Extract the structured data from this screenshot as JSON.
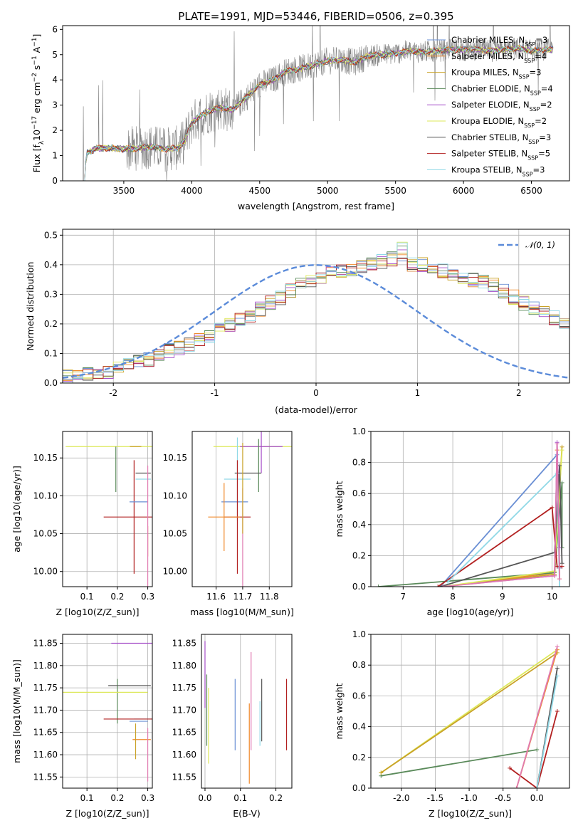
{
  "figure_title": "PLATE=1991, MJD=53446, FIBERID=0506, z=0.395",
  "colors": {
    "Chabrier MILES": "#6a8fd4",
    "Salpeter MILES": "#f08a2c",
    "Kroupa MILES": "#c9a227",
    "Chabrier ELODIE": "#5a8a5a",
    "Salpeter ELODIE": "#a64fc9",
    "Kroupa ELODIE": "#dde85a",
    "Chabrier STELIB": "#555555",
    "Salpeter STELIB": "#b22020",
    "Kroupa STELIB": "#8fd8e6",
    "Pink": "#e07ab0",
    "data": "#808080",
    "normal": "#5b8bd9"
  },
  "chart_data": [
    {
      "id": "spectrum",
      "type": "line",
      "xlabel": "wavelength [Angstrom, rest frame]",
      "ylabel": "Flux [f_λ 10^-17 erg cm^-2 s^-1 A^-1]",
      "xlim": [
        3050,
        6780
      ],
      "ylim": [
        0,
        6.15
      ],
      "xticks": [
        3500,
        4000,
        4500,
        5000,
        5500,
        6000,
        6500
      ],
      "yticks": [
        0,
        1,
        2,
        3,
        4,
        5,
        6
      ],
      "grid": false,
      "legend_position": "top-right",
      "legend": [
        {
          "name": "Chabrier MILES",
          "nssp": "3",
          "color": "#6a8fd4"
        },
        {
          "name": "Salpeter MILES",
          "nssp": "4",
          "color": "#f08a2c"
        },
        {
          "name": "Kroupa MILES",
          "nssp": "3",
          "color": "#c9a227"
        },
        {
          "name": "Chabrier ELODIE",
          "nssp": "4",
          "color": "#5a8a5a"
        },
        {
          "name": "Salpeter ELODIE",
          "nssp": "2",
          "color": "#a64fc9"
        },
        {
          "name": "Kroupa ELODIE",
          "nssp": "2",
          "color": "#dde85a"
        },
        {
          "name": "Chabrier STELIB",
          "nssp": "3",
          "color": "#555555"
        },
        {
          "name": "Salpeter STELIB",
          "nssp": "5",
          "color": "#b22020"
        },
        {
          "name": "Kroupa STELIB",
          "nssp": "3",
          "color": "#8fd8e6"
        }
      ],
      "continuum": [
        [
          3200,
          0
        ],
        [
          3230,
          1.1
        ],
        [
          3300,
          1.3
        ],
        [
          3400,
          1.3
        ],
        [
          3500,
          1.25
        ],
        [
          3600,
          1.3
        ],
        [
          3700,
          1.35
        ],
        [
          3800,
          1.25
        ],
        [
          3900,
          1.3
        ],
        [
          3950,
          1.6
        ],
        [
          4000,
          2.3
        ],
        [
          4100,
          2.7
        ],
        [
          4200,
          2.9
        ],
        [
          4300,
          2.8
        ],
        [
          4400,
          3.3
        ],
        [
          4500,
          3.8
        ],
        [
          4600,
          4.0
        ],
        [
          4700,
          4.35
        ],
        [
          4800,
          4.45
        ],
        [
          4900,
          4.6
        ],
        [
          5000,
          4.75
        ],
        [
          5100,
          4.8
        ],
        [
          5200,
          4.7
        ],
        [
          5300,
          4.95
        ],
        [
          5400,
          5.0
        ],
        [
          5500,
          5.05
        ],
        [
          5600,
          5.15
        ],
        [
          5700,
          5.1
        ],
        [
          5800,
          5.15
        ],
        [
          5900,
          5.2
        ],
        [
          6000,
          5.2
        ],
        [
          6100,
          5.2
        ],
        [
          6200,
          5.15
        ],
        [
          6300,
          5.2
        ],
        [
          6400,
          5.25
        ],
        [
          6500,
          5.15
        ],
        [
          6600,
          5.2
        ],
        [
          6650,
          5.2
        ]
      ]
    },
    {
      "id": "residuals",
      "type": "histogram",
      "xlabel": "(data-model)/error",
      "ylabel": "Normed distribution",
      "xlim": [
        -2.5,
        2.5
      ],
      "ylim": [
        0,
        0.52
      ],
      "xticks": [
        -2,
        -1,
        0,
        1,
        2
      ],
      "yticks": [
        0.0,
        0.1,
        0.2,
        0.3,
        0.4,
        0.5
      ],
      "grid": true,
      "legend_position": "top-right",
      "legend": [
        {
          "name": "N(0,1)",
          "color": "#5b8bd9",
          "style": "dashed"
        }
      ],
      "bin_width": 0.1,
      "bin_start": -2.5,
      "base_values": [
        0.02,
        0.03,
        0.03,
        0.04,
        0.04,
        0.05,
        0.06,
        0.07,
        0.08,
        0.1,
        0.11,
        0.12,
        0.13,
        0.15,
        0.16,
        0.18,
        0.2,
        0.22,
        0.23,
        0.25,
        0.27,
        0.29,
        0.31,
        0.33,
        0.34,
        0.36,
        0.37,
        0.38,
        0.38,
        0.39,
        0.4,
        0.41,
        0.42,
        0.41,
        0.4,
        0.4,
        0.39,
        0.38,
        0.37,
        0.36,
        0.35,
        0.34,
        0.33,
        0.31,
        0.29,
        0.27,
        0.25,
        0.24,
        0.22,
        0.2,
        0.18,
        0.16,
        0.15,
        0.13,
        0.11,
        0.1,
        0.09,
        0.08,
        0.07,
        0.06,
        0.05,
        0.05,
        0.04,
        0.03,
        0.03,
        0.02,
        0.02,
        0.02,
        0.02,
        0.01,
        0.01,
        0.01
      ]
    },
    {
      "id": "age_vs_Z",
      "type": "errorbar",
      "xlabel": "Z [log10(Z/Z_sun)]",
      "ylabel": "age [log10(age/yr)]",
      "xlim": [
        0.02,
        0.315
      ],
      "ylim": [
        9.98,
        10.185
      ],
      "xticks": [
        0.1,
        0.2,
        0.3
      ],
      "yticks": [
        10.0,
        10.05,
        10.1,
        10.15
      ],
      "grid": true,
      "points": [
        {
          "series": "Kroupa ELODIE",
          "x": 0.18,
          "xerr": 0.15,
          "y": 10.165,
          "yerr": 0.0
        },
        {
          "series": "Chabrier ELODIE",
          "x": 0.195,
          "xerr": 0.0,
          "y": 10.135,
          "yerr": 0.03
        },
        {
          "series": "Salpeter STELIB",
          "x": 0.255,
          "xerr": 0.1,
          "y": 10.072,
          "yerr": 0.075
        },
        {
          "series": "Chabrier STELIB",
          "x": 0.285,
          "xerr": 0.025,
          "y": 10.13,
          "yerr": 0.0
        },
        {
          "series": "Kroupa STELIB",
          "x": 0.285,
          "xerr": 0.025,
          "y": 10.122,
          "yerr": 0.0
        },
        {
          "series": "Chabrier MILES",
          "x": 0.27,
          "xerr": 0.03,
          "y": 10.092,
          "yerr": 0.0
        },
        {
          "series": "Salpeter MILES",
          "x": 0.3,
          "xerr": 0.0,
          "y": 10.04,
          "yerr": 0.02
        },
        {
          "series": "Pink",
          "x": 0.3,
          "xerr": 0.0,
          "y": 10.06,
          "yerr": 0.08
        },
        {
          "series": "Kroupa MILES",
          "x": 0.26,
          "xerr": 0.0,
          "y": 10.165,
          "yerr": 0.0
        }
      ]
    },
    {
      "id": "age_vs_mass",
      "type": "errorbar",
      "xlabel": "mass [log10(M/M_sun)]",
      "ylabel": "",
      "xlim": [
        11.51,
        11.885
      ],
      "ylim": [
        9.98,
        10.185
      ],
      "xticks": [
        11.6,
        11.7,
        11.8
      ],
      "grid": true,
      "points": [
        {
          "series": "Kroupa ELODIE",
          "x": 11.74,
          "xerr": 0.15,
          "y": 10.165,
          "yerr": 0.0
        },
        {
          "series": "Salpeter ELODIE",
          "x": 11.77,
          "xerr": 0.08,
          "y": 10.165,
          "yerr": 0.035
        },
        {
          "series": "Chabrier ELODIE",
          "x": 11.76,
          "xerr": 0.0,
          "y": 10.14,
          "yerr": 0.035
        },
        {
          "series": "Chabrier STELIB",
          "x": 11.72,
          "xerr": 0.05,
          "y": 10.13,
          "yerr": 0.0
        },
        {
          "series": "Kroupa STELIB",
          "x": 11.68,
          "xerr": 0.05,
          "y": 10.122,
          "yerr": 0.055
        },
        {
          "series": "Chabrier MILES",
          "x": 11.67,
          "xerr": 0.05,
          "y": 10.092,
          "yerr": 0.0
        },
        {
          "series": "Salpeter STELIB",
          "x": 11.68,
          "xerr": 0.05,
          "y": 10.072,
          "yerr": 0.075
        },
        {
          "series": "Salpeter MILES",
          "x": 11.63,
          "xerr": 0.06,
          "y": 10.072,
          "yerr": 0.045
        },
        {
          "series": "Pink",
          "x": 11.7,
          "xerr": 0.0,
          "y": 10.03,
          "yerr": 0.08
        },
        {
          "series": "Kroupa MILES",
          "x": 11.7,
          "xerr": 0.0,
          "y": 10.11,
          "yerr": 0.06
        }
      ]
    },
    {
      "id": "massweight_vs_age",
      "type": "line",
      "xlabel": "age [log10(age/yr)]",
      "ylabel": "mass weight",
      "xlim": [
        6.35,
        10.35
      ],
      "ylim": [
        0,
        1.0
      ],
      "xticks": [
        7,
        8,
        9,
        10
      ],
      "yticks": [
        0.0,
        0.2,
        0.4,
        0.6,
        0.8,
        1.0
      ],
      "grid": true,
      "series": [
        {
          "name": "Chabrier MILES",
          "points": [
            [
              7.75,
              0.0
            ],
            [
              10.1,
              0.85
            ],
            [
              10.15,
              0.12
            ]
          ]
        },
        {
          "name": "Salpeter MILES",
          "points": [
            [
              7.8,
              0.0
            ],
            [
              10.05,
              0.09
            ],
            [
              10.1,
              0.88
            ],
            [
              10.15,
              0.05
            ]
          ]
        },
        {
          "name": "Kroupa MILES",
          "points": [
            [
              7.8,
              0.0
            ],
            [
              10.05,
              0.08
            ],
            [
              10.2,
              0.9
            ]
          ]
        },
        {
          "name": "Chabrier ELODIE",
          "points": [
            [
              6.5,
              0.0
            ],
            [
              10.05,
              0.09
            ],
            [
              10.2,
              0.67
            ],
            [
              10.2,
              0.25
            ]
          ]
        },
        {
          "name": "Salpeter ELODIE",
          "points": [
            [
              7.75,
              0.0
            ],
            [
              10.05,
              0.07
            ],
            [
              10.1,
              0.93
            ],
            [
              10.15,
              0.25
            ]
          ]
        },
        {
          "name": "Kroupa ELODIE",
          "points": [
            [
              7.8,
              0.0
            ],
            [
              10.05,
              0.1
            ],
            [
              10.2,
              0.88
            ]
          ]
        },
        {
          "name": "Chabrier STELIB",
          "points": [
            [
              7.75,
              0.0
            ],
            [
              10.05,
              0.22
            ],
            [
              10.15,
              0.78
            ],
            [
              10.2,
              0.15
            ]
          ]
        },
        {
          "name": "Salpeter STELIB",
          "points": [
            [
              7.7,
              0.0
            ],
            [
              10.0,
              0.51
            ],
            [
              10.1,
              0.13
            ],
            [
              10.2,
              0.13
            ]
          ]
        },
        {
          "name": "Kroupa STELIB",
          "points": [
            [
              7.9,
              0.03
            ],
            [
              10.1,
              0.73
            ],
            [
              10.15,
              0.0
            ]
          ]
        },
        {
          "name": "Pink",
          "points": [
            [
              7.8,
              0.0
            ],
            [
              10.05,
              0.07
            ],
            [
              10.1,
              0.92
            ],
            [
              10.15,
              0.05
            ]
          ]
        }
      ]
    },
    {
      "id": "mass_vs_Z",
      "type": "errorbar",
      "xlabel": "Z [log10(Z/Z_sun)]",
      "ylabel": "mass [log10(M/M_sun)]",
      "xlim": [
        0.02,
        0.315
      ],
      "ylim": [
        11.525,
        11.87
      ],
      "xticks": [
        0.1,
        0.2,
        0.3
      ],
      "yticks": [
        11.55,
        11.6,
        11.65,
        11.7,
        11.75,
        11.8,
        11.85
      ],
      "grid": true,
      "points": [
        {
          "series": "Salpeter ELODIE",
          "x": 0.25,
          "xerr": 0.07,
          "y": 11.85,
          "yerr": 0.0
        },
        {
          "series": "Chabrier ELODIE",
          "x": 0.2,
          "xerr": 0.0,
          "y": 11.72,
          "yerr": 0.05
        },
        {
          "series": "Kroupa ELODIE",
          "x": 0.15,
          "xerr": 0.15,
          "y": 11.74,
          "yerr": 0.0
        },
        {
          "series": "Chabrier STELIB",
          "x": 0.24,
          "xerr": 0.07,
          "y": 11.755,
          "yerr": 0.0
        },
        {
          "series": "Kroupa STELIB",
          "x": 0.285,
          "xerr": 0.03,
          "y": 11.68,
          "yerr": 0.0
        },
        {
          "series": "Chabrier MILES",
          "x": 0.27,
          "xerr": 0.03,
          "y": 11.675,
          "yerr": 0.0
        },
        {
          "series": "Salpeter STELIB",
          "x": 0.255,
          "xerr": 0.1,
          "y": 11.68,
          "yerr": 0.0
        },
        {
          "series": "Salpeter MILES",
          "x": 0.28,
          "xerr": 0.03,
          "y": 11.634,
          "yerr": 0.0
        },
        {
          "series": "Kroupa MILES",
          "x": 0.26,
          "xerr": 0.0,
          "y": 11.63,
          "yerr": 0.04
        },
        {
          "series": "Pink",
          "x": 0.3,
          "xerr": 0.0,
          "y": 11.6,
          "yerr": 0.06
        }
      ]
    },
    {
      "id": "mass_vs_ebv",
      "type": "errorbar",
      "xlabel": "E(B-V)",
      "ylabel": "",
      "xlim": [
        -0.01,
        0.245
      ],
      "ylim": [
        11.525,
        11.87
      ],
      "xticks": [
        0.0,
        0.1,
        0.2
      ],
      "grid": true,
      "points": [
        {
          "series": "Salpeter ELODIE",
          "x": 0.0,
          "xerr": 0.0,
          "y": 11.78,
          "yerr": 0.075
        },
        {
          "series": "Chabrier ELODIE",
          "x": 0.005,
          "xerr": 0.0,
          "y": 11.7,
          "yerr": 0.08
        },
        {
          "series": "Kroupa ELODIE",
          "x": 0.01,
          "xerr": 0.0,
          "y": 11.665,
          "yerr": 0.085
        },
        {
          "series": "Chabrier MILES",
          "x": 0.085,
          "xerr": 0.0,
          "y": 11.69,
          "yerr": 0.08
        },
        {
          "series": "Salpeter MILES",
          "x": 0.125,
          "xerr": 0.0,
          "y": 11.625,
          "yerr": 0.09
        },
        {
          "series": "Pink",
          "x": 0.13,
          "xerr": 0.0,
          "y": 11.72,
          "yerr": 0.11
        },
        {
          "series": "Kroupa STELIB",
          "x": 0.155,
          "xerr": 0.0,
          "y": 11.67,
          "yerr": 0.05
        },
        {
          "series": "Chabrier STELIB",
          "x": 0.16,
          "xerr": 0.0,
          "y": 11.7,
          "yerr": 0.07
        },
        {
          "series": "Salpeter STELIB",
          "x": 0.23,
          "xerr": 0.0,
          "y": 11.69,
          "yerr": 0.08
        }
      ]
    },
    {
      "id": "massweight_vs_Z",
      "type": "line",
      "xlabel": "Z [log10(Z/Z_sun)]",
      "ylabel": "mass weight",
      "xlim": [
        -2.45,
        0.48
      ],
      "ylim": [
        0,
        1.0
      ],
      "xticks": [
        -2.0,
        -1.5,
        -1.0,
        -0.5,
        0.0
      ],
      "yticks": [
        0.0,
        0.2,
        0.4,
        0.6,
        0.8,
        1.0
      ],
      "grid": true,
      "series": [
        {
          "name": "Kroupa ELODIE",
          "points": [
            [
              -2.3,
              0.1
            ],
            [
              0.3,
              0.9
            ]
          ]
        },
        {
          "name": "Chabrier ELODIE",
          "points": [
            [
              -2.3,
              0.08
            ],
            [
              0.0,
              0.25
            ]
          ]
        },
        {
          "name": "Kroupa MILES",
          "points": [
            [
              -2.3,
              0.1
            ],
            [
              0.3,
              0.88
            ]
          ]
        },
        {
          "name": "Salpeter STELIB",
          "points": [
            [
              -0.4,
              0.13
            ],
            [
              0.0,
              0.0
            ],
            [
              0.3,
              0.5
            ]
          ]
        },
        {
          "name": "Chabrier STELIB",
          "points": [
            [
              0.0,
              0.0
            ],
            [
              0.3,
              0.78
            ]
          ]
        },
        {
          "name": "Kroupa STELIB",
          "points": [
            [
              0.0,
              0.0
            ],
            [
              0.3,
              0.73
            ]
          ]
        },
        {
          "name": "Salpeter MILES",
          "points": [
            [
              -0.3,
              0.0
            ],
            [
              0.3,
              0.9
            ]
          ]
        },
        {
          "name": "Pink",
          "points": [
            [
              -0.3,
              0.0
            ],
            [
              0.3,
              0.92
            ]
          ]
        }
      ]
    }
  ]
}
